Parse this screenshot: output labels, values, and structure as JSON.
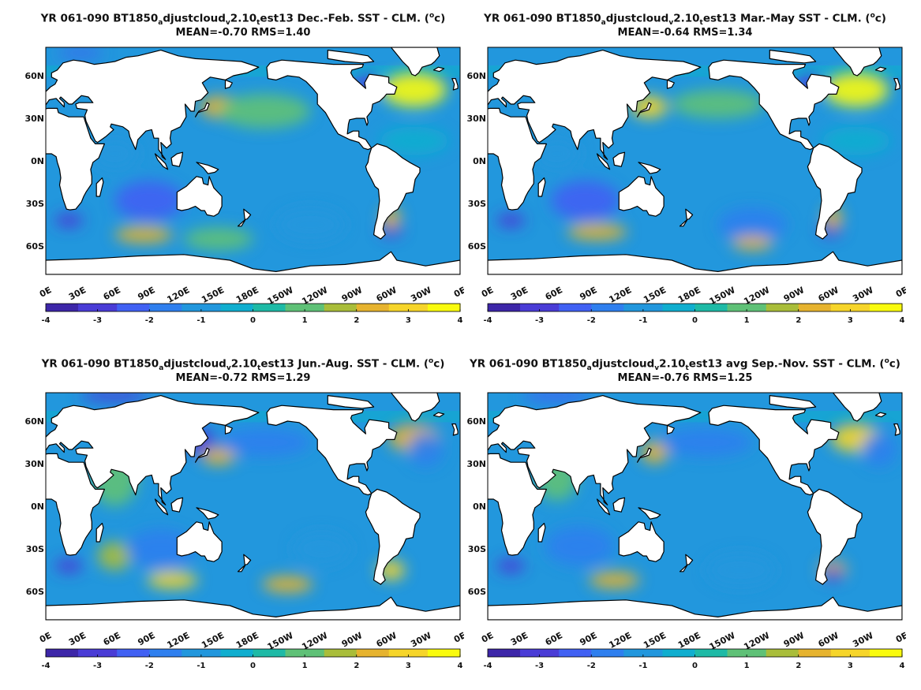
{
  "colors": {
    "land": "#ffffff",
    "coast": "#000000",
    "colormap": [
      "#3d26a8",
      "#4a3cd6",
      "#4161f3",
      "#2f7fee",
      "#2297dd",
      "#10aecf",
      "#1ebaa6",
      "#5fc177",
      "#a9bd3a",
      "#e6b32f",
      "#f6d52a",
      "#f9fb0e"
    ]
  },
  "chart_data": [
    {
      "type": "heatmap",
      "title_parts": [
        "YR 061-090 BT1850",
        "a",
        "djustcloud",
        "v",
        "2.10",
        "t",
        "est13  Dec.-Feb. SST - CLM. (",
        "o",
        "c)"
      ],
      "stats": "MEAN=-0.70   RMS=1.40",
      "mean": -0.7,
      "rms": 1.4,
      "season": "Dec.-Feb.",
      "xlabel": "",
      "ylabel": "",
      "x_ticks": [
        "0E",
        "30E",
        "60E",
        "90E",
        "120E",
        "150E",
        "180E",
        "150W",
        "120W",
        "90W",
        "60W",
        "30W",
        "0E"
      ],
      "y_ticks": [
        "60N",
        "30N",
        "0N",
        "30S",
        "60S"
      ],
      "colorbar_ticks": [
        "-4",
        "-3",
        "-2",
        "-1",
        "0",
        "1",
        "2",
        "3",
        "4"
      ],
      "clim": [
        -4,
        4
      ],
      "xlim": [
        0,
        360
      ],
      "ylim": [
        -80,
        80
      ]
    },
    {
      "type": "heatmap",
      "title_parts": [
        "YR 061-090 BT1850",
        "a",
        "djustcloud",
        "v",
        "2.10",
        "t",
        "est13 Mar.-May SST - CLM. (",
        "o",
        "c)"
      ],
      "stats": "MEAN=-0.64   RMS=1.34",
      "mean": -0.64,
      "rms": 1.34,
      "season": "Mar.-May",
      "xlabel": "",
      "ylabel": "",
      "x_ticks": [
        "0E",
        "30E",
        "60E",
        "90E",
        "120E",
        "150E",
        "180E",
        "150W",
        "120W",
        "90W",
        "60W",
        "30W",
        "0E"
      ],
      "y_ticks": [
        "60N",
        "30N",
        "0N",
        "30S",
        "60S"
      ],
      "colorbar_ticks": [
        "-4",
        "-3",
        "-2",
        "-1",
        "0",
        "1",
        "2",
        "3",
        "4"
      ],
      "clim": [
        -4,
        4
      ],
      "xlim": [
        0,
        360
      ],
      "ylim": [
        -80,
        80
      ]
    },
    {
      "type": "heatmap",
      "title_parts": [
        "YR 061-090 BT1850",
        "a",
        "djustcloud",
        "v",
        "2.10",
        "t",
        "est13 Jun.-Aug. SST - CLM. (",
        "o",
        "c)"
      ],
      "stats": "MEAN=-0.72   RMS=1.29",
      "mean": -0.72,
      "rms": 1.29,
      "season": "Jun.-Aug.",
      "xlabel": "",
      "ylabel": "",
      "x_ticks": [
        "0E",
        "30E",
        "60E",
        "90E",
        "120E",
        "150E",
        "180E",
        "150W",
        "120W",
        "90W",
        "60W",
        "30W",
        "0E"
      ],
      "y_ticks": [
        "60N",
        "30N",
        "0N",
        "30S",
        "60S"
      ],
      "colorbar_ticks": [
        "-4",
        "-3",
        "-2",
        "-1",
        "0",
        "1",
        "2",
        "3",
        "4"
      ],
      "clim": [
        -4,
        4
      ],
      "xlim": [
        0,
        360
      ],
      "ylim": [
        -80,
        80
      ]
    },
    {
      "type": "heatmap",
      "title_parts": [
        "YR 061-090 BT1850",
        "a",
        "djustcloud",
        "v",
        "2.10",
        "t",
        "est13 avg Sep.-Nov. SST - CLM. (",
        "o",
        "c)"
      ],
      "stats": "MEAN=-0.76   RMS=1.25",
      "mean": -0.76,
      "rms": 1.25,
      "season": "Sep.-Nov.",
      "xlabel": "",
      "ylabel": "",
      "x_ticks": [
        "0E",
        "30E",
        "60E",
        "90E",
        "120E",
        "150E",
        "180E",
        "150W",
        "120W",
        "90W",
        "60W",
        "30W",
        "0E"
      ],
      "y_ticks": [
        "60N",
        "30N",
        "0N",
        "30S",
        "60S"
      ],
      "colorbar_ticks": [
        "-4",
        "-3",
        "-2",
        "-1",
        "0",
        "1",
        "2",
        "3",
        "4"
      ],
      "clim": [
        -4,
        4
      ],
      "xlim": [
        0,
        360
      ],
      "ylim": [
        -80,
        80
      ]
    }
  ]
}
